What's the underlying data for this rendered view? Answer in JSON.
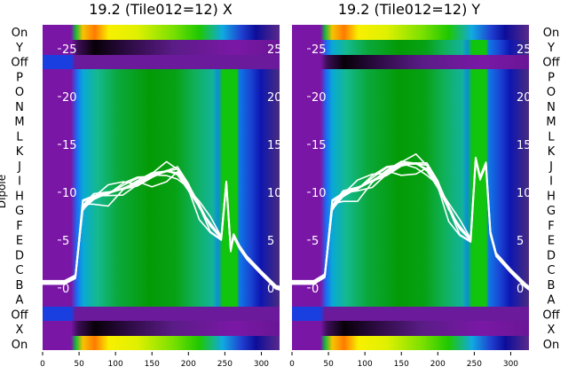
{
  "chart_data": [
    {
      "type": "heatmap",
      "panel": "x",
      "title": "19.2 (Tile012=12) X",
      "ylabel": "Dipole",
      "xticks": [
        0,
        50,
        100,
        150,
        200,
        250,
        300
      ],
      "xlim": [
        0,
        325
      ],
      "yticks": [
        0,
        5,
        10,
        15,
        20,
        25
      ],
      "ylim": [
        -6.5,
        27.5
      ],
      "category_labels_left": [
        "On",
        "Y",
        "Off",
        "P",
        "O",
        "N",
        "M",
        "L",
        "K",
        "J",
        "I",
        "H",
        "G",
        "F",
        "E",
        "D",
        "C",
        "B",
        "A",
        "Off",
        "X",
        "On"
      ],
      "overlay_series_example": {
        "x": [
          0,
          30,
          45,
          55,
          70,
          90,
          110,
          130,
          150,
          170,
          185,
          200,
          215,
          230,
          245,
          252,
          258,
          262,
          270,
          280,
          300,
          320,
          325
        ],
        "y": [
          0.6,
          0.6,
          1.2,
          8.5,
          9.5,
          9.9,
          10.4,
          11.0,
          11.7,
          12.2,
          12.0,
          10.5,
          8.5,
          6.5,
          5.2,
          11.0,
          4.0,
          5.5,
          4.3,
          3.2,
          1.6,
          0.1,
          0
        ]
      }
    },
    {
      "type": "heatmap",
      "panel": "y",
      "title": "19.2 (Tile012=12) Y",
      "xticks": [
        0,
        50,
        100,
        150,
        200,
        250,
        300
      ],
      "xlim": [
        0,
        325
      ],
      "yticks": [
        0,
        5,
        10,
        15,
        20,
        25
      ],
      "ylim": [
        -6.5,
        27.5
      ],
      "category_labels_right": [
        "On",
        "Y",
        "Off",
        "P",
        "O",
        "N",
        "M",
        "L",
        "K",
        "J",
        "I",
        "H",
        "G",
        "F",
        "E",
        "D",
        "C",
        "B",
        "A",
        "Off",
        "X",
        "On"
      ],
      "overlay_series_example": {
        "x": [
          0,
          30,
          45,
          55,
          70,
          90,
          110,
          130,
          150,
          170,
          185,
          200,
          215,
          230,
          245,
          252,
          258,
          266,
          272,
          280,
          300,
          320,
          325
        ],
        "y": [
          0.6,
          0.6,
          1.3,
          8.5,
          9.8,
          10.4,
          11.2,
          12.1,
          12.9,
          13.0,
          12.4,
          10.8,
          8.3,
          6.2,
          5.0,
          13.5,
          11.5,
          13.0,
          5.8,
          3.5,
          1.8,
          0.3,
          0
        ]
      }
    }
  ]
}
